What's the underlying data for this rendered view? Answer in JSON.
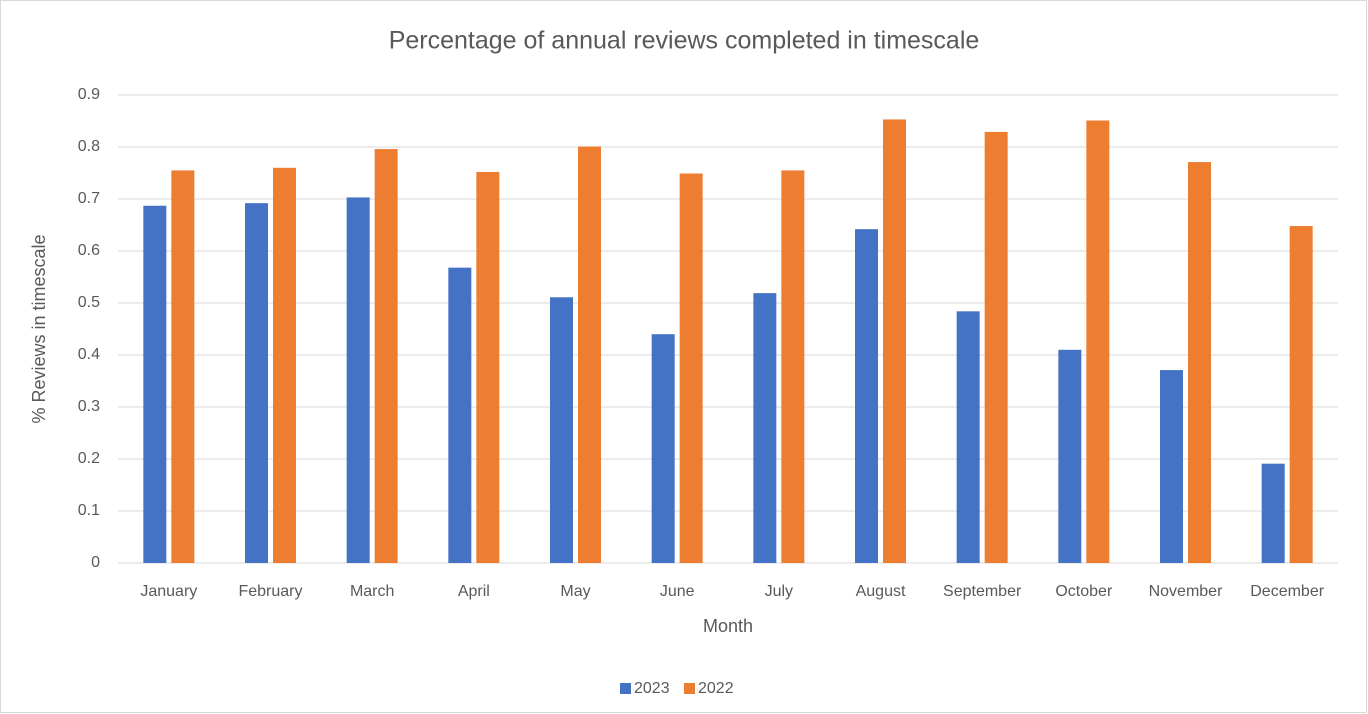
{
  "chart_data": {
    "type": "bar",
    "title": "Percentage of annual reviews completed in timescale",
    "x_label": "Month",
    "y_label": "% Reviews in timescale",
    "categories": [
      "January",
      "February",
      "March",
      "April",
      "May",
      "June",
      "July",
      "August",
      "September",
      "October",
      "November",
      "December"
    ],
    "series": [
      {
        "name": "2023",
        "color": "#4472c4",
        "values": [
          0.687,
          0.692,
          0.703,
          0.568,
          0.511,
          0.44,
          0.519,
          0.642,
          0.484,
          0.41,
          0.371,
          0.191
        ]
      },
      {
        "name": "2022",
        "color": "#ed7d31",
        "values": [
          0.755,
          0.76,
          0.796,
          0.752,
          0.801,
          0.749,
          0.755,
          0.853,
          0.829,
          0.851,
          0.771,
          0.648
        ]
      }
    ],
    "ylim": [
      0,
      0.9
    ],
    "yticks": [
      0,
      0.1,
      0.2,
      0.3,
      0.4,
      0.5,
      0.6,
      0.7,
      0.8,
      0.9
    ],
    "grid": true,
    "legend": "bottom"
  }
}
